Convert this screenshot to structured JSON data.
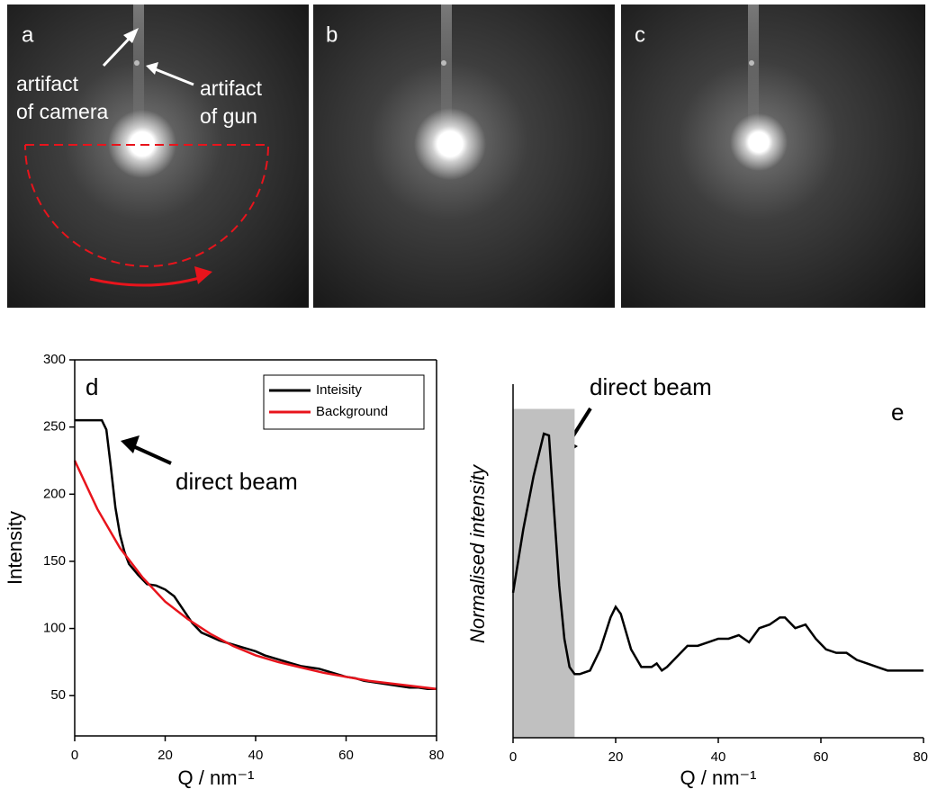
{
  "images": [
    {
      "label": "a",
      "annotations": [
        [
          "artifact",
          "of camera"
        ],
        [
          "artifact",
          "of gun"
        ]
      ]
    },
    {
      "label": "b"
    },
    {
      "label": "c"
    }
  ],
  "chart_data": [
    {
      "type": "line",
      "panel": "d",
      "x_label": "Q / nm⁻¹",
      "y_label": "Intensity",
      "annotation": "direct beam",
      "xlim": [
        0,
        80
      ],
      "ylim": [
        20,
        300
      ],
      "xticks": [
        0,
        20,
        40,
        60,
        80
      ],
      "yticks": [
        50,
        100,
        150,
        200,
        250,
        300
      ],
      "legend": "upper right",
      "series": [
        {
          "name": "Inteisity",
          "color": "#000000",
          "x": [
            0,
            2,
            4,
            6,
            7,
            8,
            9,
            10,
            11,
            12,
            14,
            16,
            18,
            20,
            22,
            24,
            26,
            28,
            30,
            32,
            34,
            36,
            38,
            40,
            42,
            44,
            46,
            48,
            50,
            52,
            54,
            56,
            58,
            60,
            62,
            64,
            66,
            68,
            70,
            72,
            74,
            76,
            78,
            80
          ],
          "values": [
            255,
            255,
            255,
            255,
            248,
            220,
            190,
            170,
            157,
            148,
            140,
            133,
            132,
            129,
            124,
            114,
            104,
            97,
            94,
            91,
            89,
            87,
            85,
            83,
            80,
            78,
            76,
            74,
            72,
            71,
            70,
            68,
            66,
            64,
            63,
            61,
            60,
            59,
            58,
            57,
            56,
            56,
            55,
            55
          ]
        },
        {
          "name": "Background",
          "color": "#e8141c",
          "x": [
            0,
            5,
            10,
            15,
            20,
            25,
            30,
            35,
            40,
            45,
            50,
            55,
            60,
            65,
            70,
            75,
            80
          ],
          "values": [
            225,
            189,
            160,
            138,
            120,
            107,
            96,
            87,
            80,
            75,
            71,
            67,
            64,
            61,
            59,
            57,
            55
          ]
        }
      ]
    },
    {
      "type": "line",
      "panel": "e",
      "x_label": "Q / nm⁻¹",
      "y_label": "Normalised intensity",
      "annotation": "direct beam",
      "xlim": [
        0,
        80
      ],
      "ylim": [
        0,
        1
      ],
      "xticks": [
        0,
        20,
        40,
        60,
        80
      ],
      "highlight": {
        "x": [
          0,
          12
        ],
        "y": [
          0,
          0.93
        ],
        "color": "#c0c0c0"
      },
      "series": [
        {
          "color": "#000000",
          "x": [
            0,
            2,
            4,
            6,
            7,
            8,
            9,
            10,
            11,
            12,
            13,
            15,
            17,
            19,
            20,
            21,
            23,
            25,
            27,
            28,
            29,
            30,
            32,
            34,
            36,
            38,
            40,
            42,
            44,
            46,
            48,
            50,
            52,
            53,
            55,
            57,
            59,
            61,
            63,
            65,
            67,
            69,
            71,
            73,
            75,
            77,
            79,
            80
          ],
          "values": [
            0.41,
            0.59,
            0.74,
            0.86,
            0.855,
            0.64,
            0.43,
            0.28,
            0.2,
            0.18,
            0.18,
            0.19,
            0.25,
            0.34,
            0.37,
            0.35,
            0.25,
            0.2,
            0.2,
            0.21,
            0.19,
            0.2,
            0.23,
            0.26,
            0.26,
            0.27,
            0.28,
            0.28,
            0.29,
            0.27,
            0.31,
            0.32,
            0.34,
            0.34,
            0.31,
            0.32,
            0.28,
            0.25,
            0.24,
            0.24,
            0.22,
            0.21,
            0.2,
            0.19,
            0.19,
            0.19,
            0.19,
            0.19
          ]
        }
      ]
    }
  ]
}
